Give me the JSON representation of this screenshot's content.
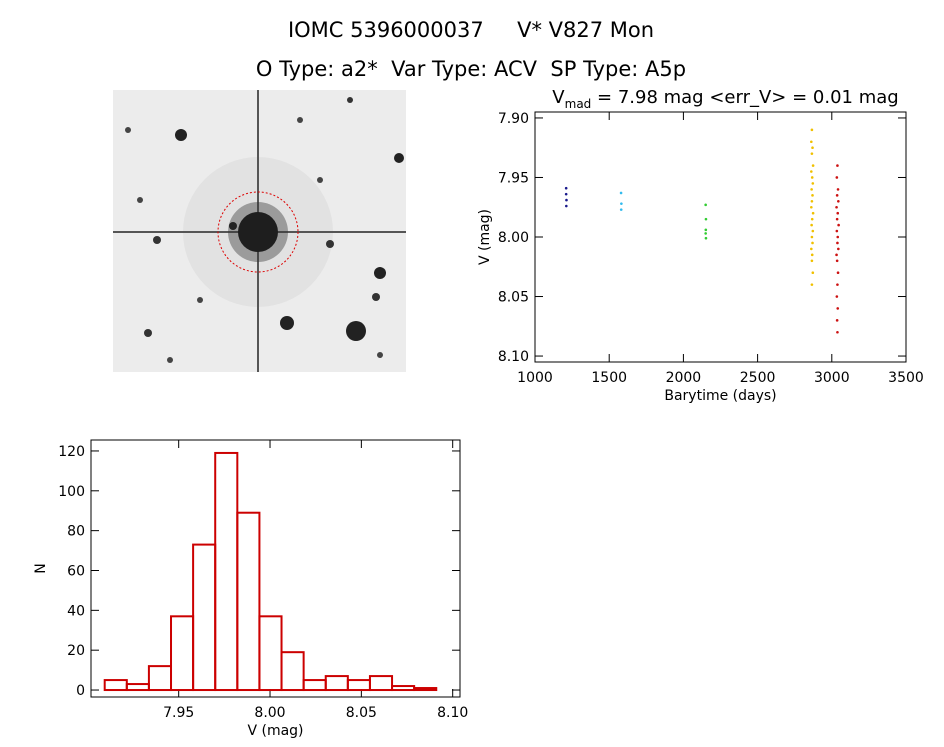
{
  "title": "IOMC 5396000037     V* V827 Mon",
  "subtitle": "O Type: a2*  Var Type: ACV  SP Type: A5p",
  "chart_data": [
    {
      "type": "scatter",
      "title": {
        "main": "V",
        "subscript": "mad",
        "rest": " = 7.98 mag <err_V> = 0.01 mag"
      },
      "x_label": "Barytime (days)",
      "y_label": "V (mag)",
      "xlim": [
        1000,
        3500
      ],
      "xticks": [
        1000,
        1500,
        2000,
        2500,
        3000,
        3500
      ],
      "ylim": [
        8.105,
        7.895
      ],
      "yticks": [
        {
          "value": 7.9,
          "label": "7.90"
        },
        7.95,
        {
          "value": 8.0,
          "label": "8.00"
        },
        8.05,
        {
          "value": 8.1,
          "label": "8.10"
        }
      ],
      "series": [
        {
          "color": "#1a1a8c",
          "x": [
            1210,
            1210,
            1212,
            1211
          ],
          "values": [
            7.959,
            7.964,
            7.969,
            7.974
          ]
        },
        {
          "color": "#33bbee",
          "x": [
            1580,
            1582,
            1581
          ],
          "values": [
            7.963,
            7.972,
            7.977
          ]
        },
        {
          "color": "#33cc33",
          "x": [
            2150,
            2152,
            2151,
            2150,
            2152
          ],
          "values": [
            7.973,
            7.985,
            7.994,
            7.997,
            8.001
          ]
        },
        {
          "color": "#f0c000",
          "x": [
            2866,
            2862,
            2870,
            2866,
            2874,
            2862,
            2868,
            2872,
            2864,
            2870,
            2866,
            2862,
            2874,
            2868,
            2864,
            2872,
            2866,
            2870,
            2862,
            2868,
            2866,
            2872,
            2866
          ],
          "values": [
            7.91,
            7.92,
            7.925,
            7.93,
            7.94,
            7.945,
            7.95,
            7.955,
            7.96,
            7.965,
            7.97,
            7.975,
            7.98,
            7.985,
            7.99,
            7.995,
            8.0,
            8.005,
            8.01,
            8.015,
            8.02,
            8.03,
            8.04
          ]
        },
        {
          "color": "#cc1111",
          "x": [
            3038,
            3034,
            3042,
            3036,
            3044,
            3032,
            3040,
            3036,
            3046,
            3034,
            3040,
            3038,
            3044,
            3032,
            3036,
            3042,
            3038,
            3034,
            3040,
            3036,
            3038
          ],
          "values": [
            7.94,
            7.95,
            7.96,
            7.965,
            7.97,
            7.975,
            7.98,
            7.985,
            7.99,
            7.995,
            8.0,
            8.005,
            8.01,
            8.015,
            8.02,
            8.03,
            8.04,
            8.05,
            8.06,
            8.07,
            8.08
          ]
        }
      ]
    },
    {
      "type": "histogram",
      "x_label": "V (mag)",
      "y_label": "N",
      "color": "#cc0000",
      "bins": [
        7.9095,
        7.9216,
        7.9337,
        7.9458,
        7.9579,
        7.97,
        7.9821,
        7.9942,
        8.0063,
        8.0184,
        8.0305,
        8.0426,
        8.0547,
        8.0668,
        8.0789,
        8.091
      ],
      "values": [
        5,
        3,
        12,
        37,
        73,
        119,
        89,
        37,
        19,
        5,
        7,
        5,
        7,
        2,
        1
      ],
      "xlim": [
        7.902,
        8.104
      ],
      "xticks": [
        7.95,
        {
          "value": 8.0,
          "label": "8.00"
        },
        8.05,
        {
          "value": 8.1,
          "label": "8.10"
        }
      ],
      "ylim": [
        -3.5,
        125.5
      ],
      "yticks": [
        0,
        20,
        40,
        60,
        80,
        100,
        120
      ]
    }
  ]
}
